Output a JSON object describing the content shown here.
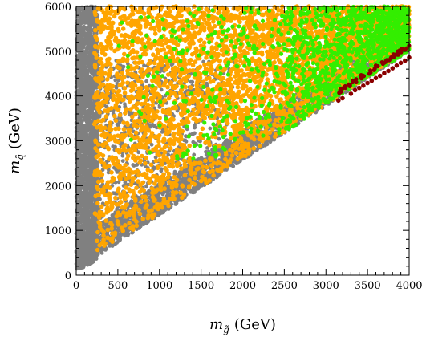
{
  "chart_data": {
    "type": "scatter",
    "title": "",
    "xlabel": "m_g̃ (GeV)",
    "ylabel": "m_q̃ (GeV)",
    "x_label_parts": {
      "symbol": "m",
      "subscript": "g̃",
      "unit": "(GeV)"
    },
    "y_label_parts": {
      "symbol": "m",
      "subscript": "q̃",
      "unit": "(GeV)"
    },
    "xlim": [
      0,
      4000
    ],
    "ylim": [
      0,
      6000
    ],
    "xticks": [
      0,
      500,
      1000,
      1500,
      2000,
      2500,
      3000,
      3500,
      4000
    ],
    "yticks": [
      0,
      1000,
      2000,
      3000,
      4000,
      5000,
      6000
    ],
    "xtick_labels": [
      "0",
      "500",
      "1000",
      "1500",
      "2000",
      "2500",
      "3000",
      "3500",
      "4000"
    ],
    "ytick_labels": [
      "0",
      "1000",
      "2000",
      "3000",
      "4000",
      "5000",
      "6000"
    ],
    "grid": false,
    "legend": "none",
    "series": [
      {
        "color": "#808080",
        "description_regions": "dense band near x=0-250 for all y; region below y≈1.22x+150 down to line; lower-left wedge",
        "region": {
          "x_min": 0,
          "x_max": 4000,
          "y_min": 100,
          "y_max": 6000
        }
      },
      {
        "color": "#ffa500",
        "region": {
          "x_min": 200,
          "x_max": 4000,
          "y_min": 400,
          "y_max": 6000
        }
      },
      {
        "color": "#33ee00",
        "region": {
          "x_min": 300,
          "x_max": 4000,
          "y_min": 2600,
          "y_max": 6000
        }
      },
      {
        "color": "#8b0000",
        "points": [
          [
            3150,
            3900
          ],
          [
            3200,
            3950
          ],
          [
            3300,
            4050
          ],
          [
            3350,
            4130
          ],
          [
            3400,
            4180
          ],
          [
            3450,
            4230
          ],
          [
            3500,
            4290
          ],
          [
            3550,
            4340
          ],
          [
            3600,
            4400
          ],
          [
            3650,
            4450
          ],
          [
            3700,
            4510
          ],
          [
            3750,
            4560
          ],
          [
            3800,
            4620
          ],
          [
            3850,
            4680
          ],
          [
            3900,
            4740
          ],
          [
            3950,
            4790
          ],
          [
            4000,
            4860
          ]
        ]
      }
    ]
  }
}
